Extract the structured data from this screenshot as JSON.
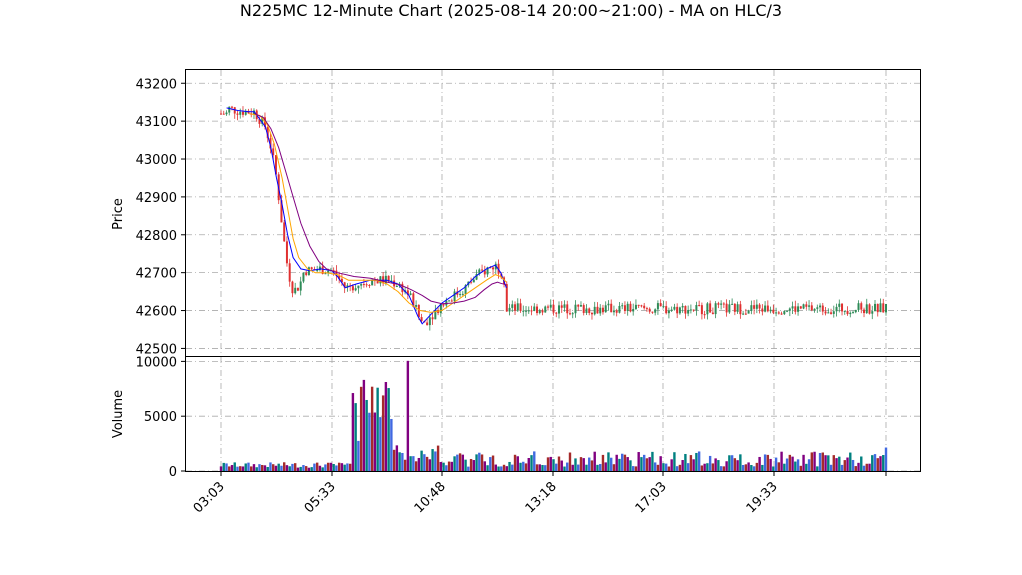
{
  "chart_data": {
    "type": "candlestick",
    "title": "N225MC 12-Minute Chart (2025-08-14 20:00~21:00) - MA on HLC/3",
    "price_panel": {
      "ylabel": "Price",
      "ylim": [
        42480,
        43235
      ],
      "yticks": [
        42500,
        42600,
        42700,
        42800,
        42900,
        43000,
        43100,
        43200
      ],
      "grid": true,
      "candle_up_color": "#2e8b57",
      "candle_down_color": "#e03030",
      "series": [
        {
          "color": "#0000ff",
          "values": [
            [
              0.05,
              43135
            ],
            [
              0.15,
              43128
            ],
            [
              0.25,
              43125
            ],
            [
              0.3,
              43125
            ],
            [
              0.4,
              43085
            ],
            [
              0.45,
              43030
            ],
            [
              0.5,
              42950
            ],
            [
              0.55,
              42880
            ],
            [
              0.6,
              42800
            ],
            [
              0.65,
              42740
            ],
            [
              0.72,
              42710
            ],
            [
              0.8,
              42705
            ],
            [
              0.9,
              42710
            ],
            [
              1.0,
              42705
            ],
            [
              1.05,
              42690
            ],
            [
              1.12,
              42660
            ],
            [
              1.22,
              42670
            ],
            [
              1.35,
              42680
            ],
            [
              1.5,
              42680
            ],
            [
              1.6,
              42670
            ],
            [
              1.7,
              42640
            ],
            [
              1.78,
              42585
            ],
            [
              1.82,
              42565
            ],
            [
              1.9,
              42590
            ],
            [
              2.0,
              42620
            ],
            [
              2.1,
              42640
            ],
            [
              2.2,
              42660
            ],
            [
              2.3,
              42690
            ],
            [
              2.4,
              42710
            ],
            [
              2.48,
              42720
            ],
            [
              2.53,
              42700
            ],
            [
              2.58,
              42660
            ]
          ]
        },
        {
          "color": "#ffa500",
          "values": [
            [
              0.25,
              43120
            ],
            [
              0.35,
              43115
            ],
            [
              0.42,
              43090
            ],
            [
              0.48,
              43040
            ],
            [
              0.55,
              42950
            ],
            [
              0.6,
              42870
            ],
            [
              0.65,
              42790
            ],
            [
              0.7,
              42740
            ],
            [
              0.78,
              42710
            ],
            [
              0.85,
              42700
            ],
            [
              0.95,
              42700
            ],
            [
              1.05,
              42695
            ],
            [
              1.15,
              42680
            ],
            [
              1.25,
              42680
            ],
            [
              1.4,
              42680
            ],
            [
              1.5,
              42670
            ],
            [
              1.6,
              42650
            ],
            [
              1.7,
              42620
            ],
            [
              1.8,
              42600
            ],
            [
              1.9,
              42595
            ],
            [
              2.0,
              42600
            ],
            [
              2.1,
              42620
            ],
            [
              2.2,
              42640
            ],
            [
              2.3,
              42660
            ],
            [
              2.4,
              42680
            ],
            [
              2.48,
              42695
            ],
            [
              2.53,
              42690
            ],
            [
              2.58,
              42675
            ]
          ]
        },
        {
          "color": "#800080",
          "values": [
            [
              0.3,
              43120
            ],
            [
              0.38,
              43110
            ],
            [
              0.45,
              43080
            ],
            [
              0.52,
              43030
            ],
            [
              0.58,
              42970
            ],
            [
              0.65,
              42900
            ],
            [
              0.72,
              42830
            ],
            [
              0.8,
              42770
            ],
            [
              0.88,
              42730
            ],
            [
              0.95,
              42710
            ],
            [
              1.05,
              42700
            ],
            [
              1.2,
              42690
            ],
            [
              1.35,
              42685
            ],
            [
              1.5,
              42675
            ],
            [
              1.62,
              42668
            ],
            [
              1.72,
              42655
            ],
            [
              1.82,
              42640
            ],
            [
              1.9,
              42625
            ],
            [
              2.0,
              42618
            ],
            [
              2.1,
              42620
            ],
            [
              2.2,
              42625
            ],
            [
              2.3,
              42635
            ],
            [
              2.38,
              42655
            ],
            [
              2.45,
              42670
            ],
            [
              2.5,
              42675
            ],
            [
              2.53,
              42672
            ],
            [
              2.58,
              42668
            ]
          ]
        }
      ]
    },
    "volume_panel": {
      "ylabel": "Volume",
      "ylim": [
        0,
        10400
      ],
      "yticks": [
        0,
        5000,
        10000
      ],
      "grid": true,
      "bar_colors": [
        "#800080",
        "#008080",
        "#4169e1",
        "#a52a2a"
      ]
    },
    "x_axis": {
      "tick_labels": [
        "03:03",
        "05:33",
        "10:48",
        "13:18",
        "17:03",
        "19:33"
      ],
      "tick_rotation": 45
    }
  }
}
